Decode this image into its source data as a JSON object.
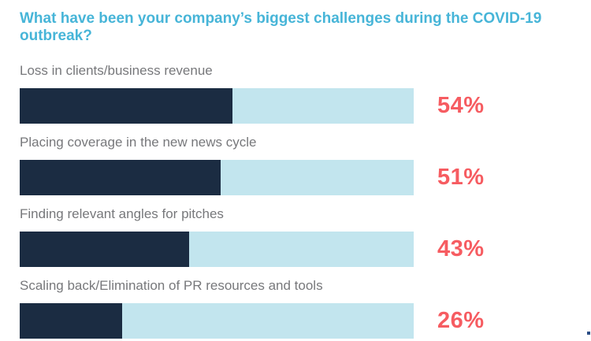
{
  "title": "What have been your company’s biggest challenges during the COVID-19 outbreak?",
  "colors": {
    "background": "#ffffff",
    "title": "#47b5d8",
    "label": "#77787b",
    "bar_fill": "#1b2c42",
    "bar_track": "#c2e5ee",
    "percent": "#f65c61"
  },
  "chart_data": {
    "type": "bar",
    "orientation": "horizontal",
    "title": "What have been your company’s biggest challenges during the COVID-19 outbreak?",
    "categories": [
      "Loss in clients/business revenue",
      "Placing coverage in the new news cycle",
      "Finding relevant angles for pitches",
      "Scaling back/Elimination of PR resources and tools"
    ],
    "values": [
      54,
      51,
      43,
      26
    ],
    "value_labels": [
      "54%",
      "51%",
      "43%",
      "26%"
    ],
    "xlabel": "",
    "ylabel": "",
    "xlim": [
      0,
      100
    ],
    "grid": false,
    "legend": "none",
    "value_label_position": "right-of-track"
  }
}
